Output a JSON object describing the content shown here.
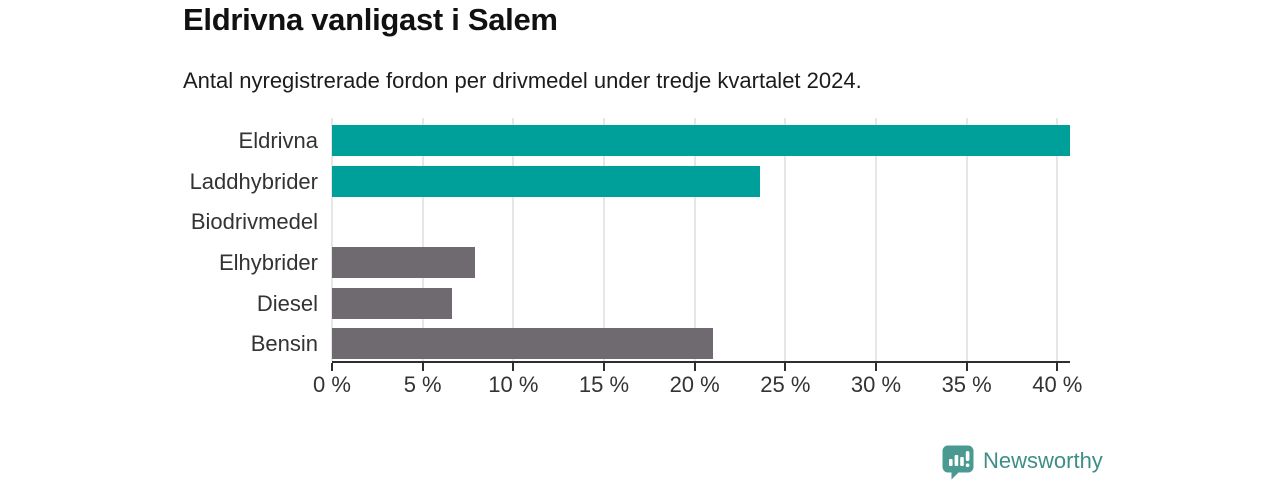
{
  "header": {
    "title": "Eldrivna vanligast i Salem",
    "subtitle": "Antal nyregistrerade fordon per drivmedel under tredje kvartalet 2024."
  },
  "branding": {
    "label": "Newsworthy",
    "icon": "bar-chart-speech-bubble-icon",
    "text_color": "#3d8e87",
    "icon_color": "#4a9a92"
  },
  "colors": {
    "highlight_bar": "#00a09a",
    "muted_bar": "#6e6a70",
    "gridline": "#e6e6e6",
    "axis": "#2e2e2e",
    "label_text": "#333333"
  },
  "chart_data": {
    "type": "bar",
    "orientation": "horizontal",
    "title": "Eldrivna vanligast i Salem",
    "subtitle": "Antal nyregistrerade fordon per drivmedel under tredje kvartalet 2024.",
    "categories": [
      "Eldrivna",
      "Laddhybrider",
      "Biodrivmedel",
      "Elhybrider",
      "Diesel",
      "Bensin"
    ],
    "values": [
      40.7,
      23.6,
      0,
      7.9,
      6.6,
      21.0
    ],
    "unit": "%",
    "bar_colors": [
      "#00a09a",
      "#00a09a",
      "#6e6a70",
      "#6e6a70",
      "#6e6a70",
      "#6e6a70"
    ],
    "xlabel": "",
    "ylabel": "",
    "x_tick_values": [
      0,
      5,
      10,
      15,
      20,
      25,
      30,
      35,
      40
    ],
    "x_tick_labels": [
      "0 %",
      "5 %",
      "10 %",
      "15 %",
      "20 %",
      "25 %",
      "30 %",
      "35 %",
      "40 %"
    ],
    "xlim": [
      0,
      40.7
    ],
    "grid": true,
    "legend": false
  }
}
